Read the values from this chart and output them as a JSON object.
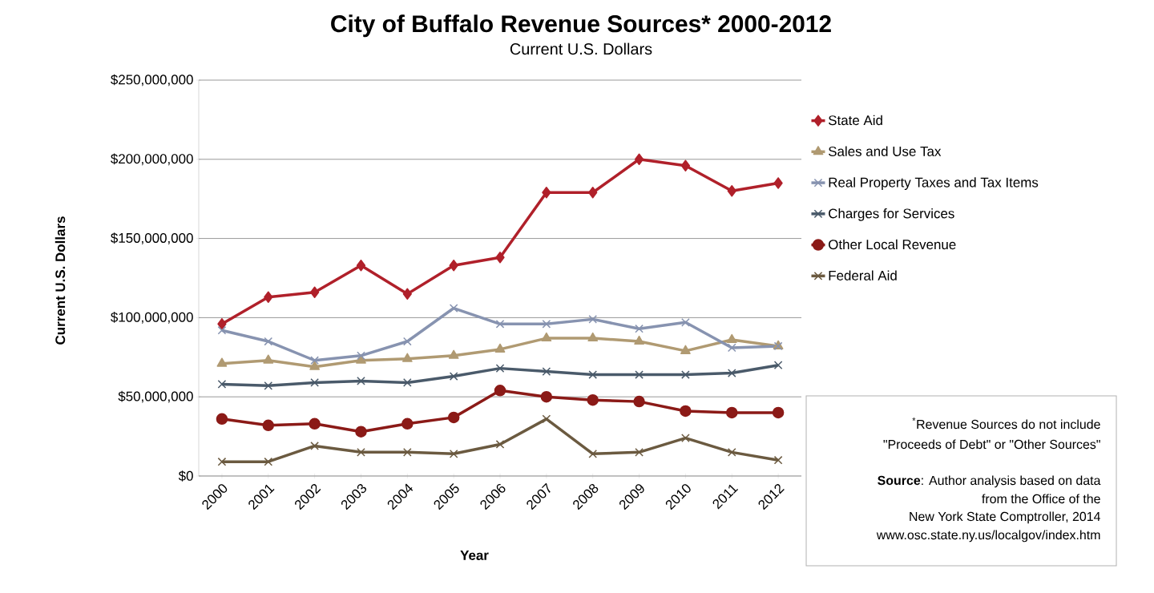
{
  "chart_data": {
    "type": "line",
    "title": "City of Buffalo Revenue Sources* 2000-2012",
    "subtitle": "Current U.S. Dollars",
    "xlabel": "Year",
    "ylabel": "Current U.S. Dollars",
    "categories": [
      "2000",
      "2001",
      "2002",
      "2003",
      "2004",
      "2005",
      "2006",
      "2007",
      "2008",
      "2009",
      "2010",
      "2011",
      "2012"
    ],
    "series": [
      {
        "name": "State Aid",
        "color": "#b0202a",
        "marker": "diamond",
        "values": [
          96000000,
          113000000,
          116000000,
          133000000,
          115000000,
          133000000,
          138000000,
          179000000,
          179000000,
          200000000,
          196000000,
          180000000,
          185000000
        ]
      },
      {
        "name": "Sales and Use Tax",
        "color": "#b09a72",
        "marker": "triangle",
        "values": [
          71000000,
          73000000,
          69000000,
          73000000,
          74000000,
          76000000,
          80000000,
          87000000,
          87000000,
          85000000,
          79000000,
          86000000,
          82000000
        ]
      },
      {
        "name": "Real Property Taxes and Tax Items",
        "color": "#8793b0",
        "marker": "cross",
        "values": [
          92000000,
          85000000,
          73000000,
          76000000,
          85000000,
          106000000,
          96000000,
          96000000,
          99000000,
          93000000,
          97000000,
          81000000,
          82000000
        ]
      },
      {
        "name": "Charges for Services",
        "color": "#4a5a6a",
        "marker": "cross",
        "values": [
          58000000,
          57000000,
          59000000,
          60000000,
          59000000,
          63000000,
          68000000,
          66000000,
          64000000,
          64000000,
          64000000,
          65000000,
          70000000
        ]
      },
      {
        "name": "Other Local Revenue",
        "color": "#8b1a17",
        "marker": "circle",
        "values": [
          36000000,
          32000000,
          33000000,
          28000000,
          33000000,
          37000000,
          54000000,
          50000000,
          48000000,
          47000000,
          41000000,
          40000000,
          40000000
        ]
      },
      {
        "name": "Federal Aid",
        "color": "#6b5a40",
        "marker": "cross",
        "values": [
          9000000,
          9000000,
          19000000,
          15000000,
          15000000,
          14000000,
          20000000,
          36000000,
          14000000,
          15000000,
          24000000,
          15000000,
          10000000
        ]
      }
    ],
    "ylim": [
      0,
      250000000
    ],
    "yticks": [
      {
        "value": 0,
        "label": "$0"
      },
      {
        "value": 50000000,
        "label": "$50,000,000"
      },
      {
        "value": 100000000,
        "label": "$100,000,000"
      },
      {
        "value": 150000000,
        "label": "$150,000,000"
      },
      {
        "value": 200000000,
        "label": "$200,000,000"
      },
      {
        "value": 250000000,
        "label": "$250,000,000"
      }
    ],
    "grid": "y",
    "legend": "right",
    "line_style": "solid",
    "annotations": [
      "$^{*}$Revenue Sources do not include",
      "\"Proceeds of Debt\" or \"Other Sources\"",
      "**Source**: Author analysis based on data",
      "from the Office of the",
      "New York State Comptroller, 2014",
      "www.osc.state.ny.us/localgov/index.htm"
    ]
  }
}
